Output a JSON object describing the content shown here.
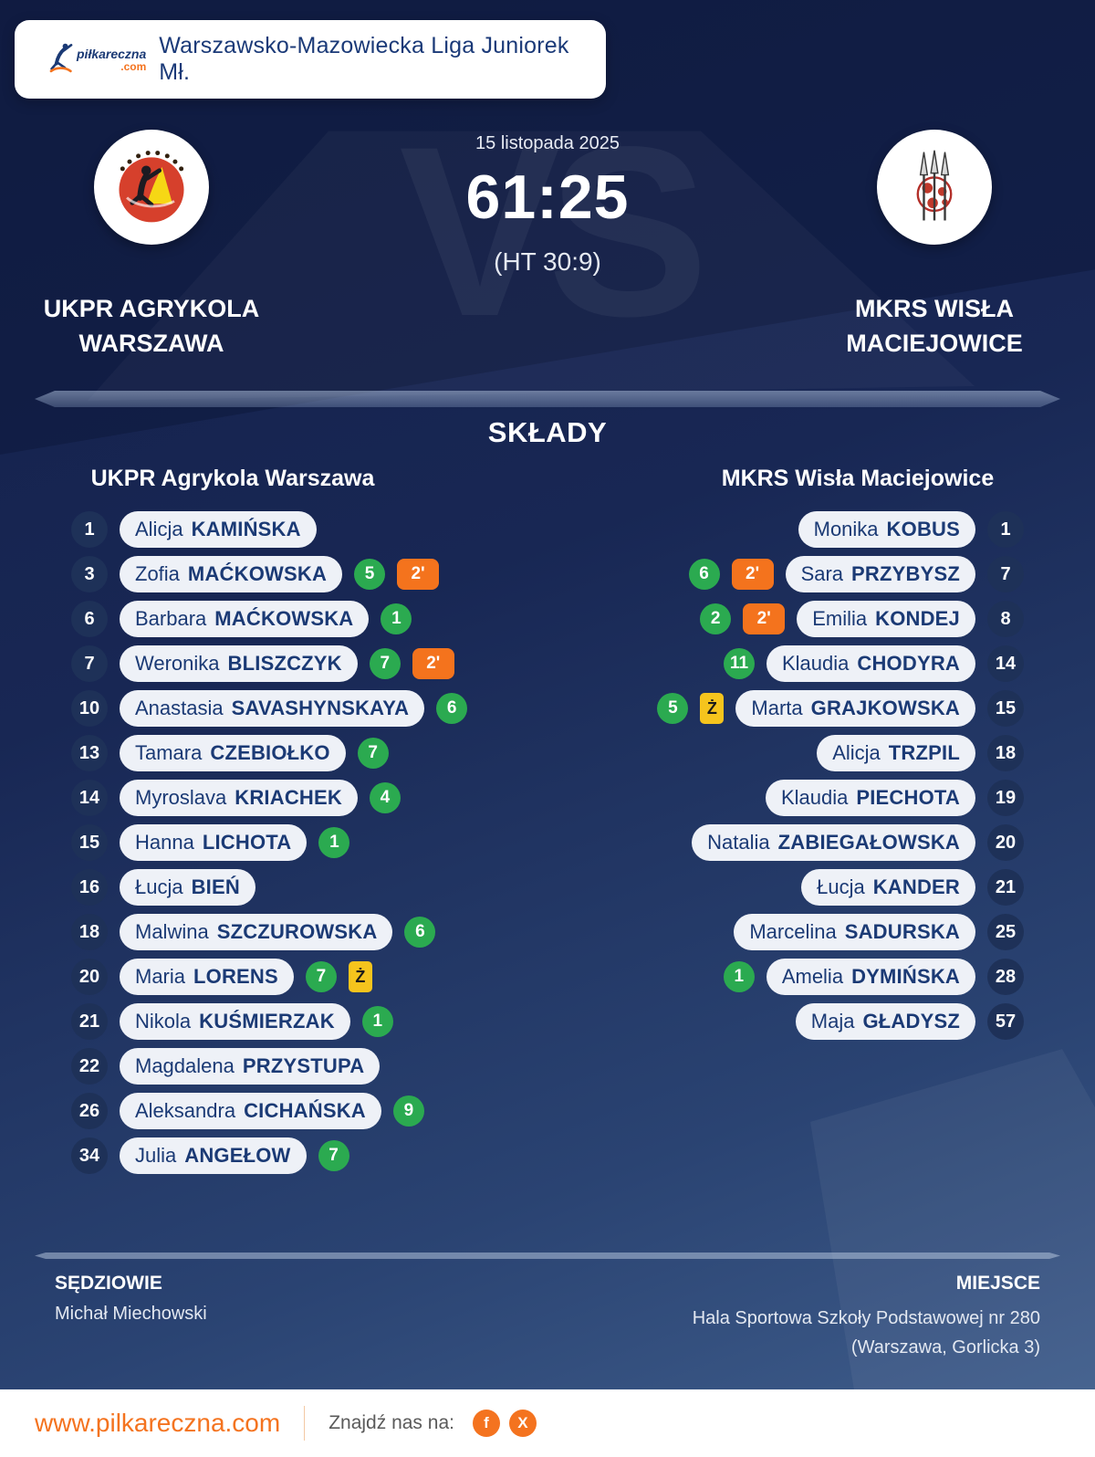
{
  "header": {
    "brand": "piłkareczna",
    "brand_tld": ".com",
    "league": "Warszawsko-Mazowiecka Liga Juniorek Mł."
  },
  "match": {
    "date": "15 listopada 2025",
    "score": "61:25",
    "halftime": "(HT 30:9)",
    "vs": "VS",
    "home_name": "UKPR AGRYKOLA WARSZAWA",
    "away_name": "MKRS WISŁA MACIEJOWICE"
  },
  "lineups": {
    "title": "SKŁADY",
    "home": {
      "team": "UKPR Agrykola Warszawa",
      "players": [
        {
          "number": 1,
          "first": "Alicja",
          "last": "KAMIŃSKA"
        },
        {
          "number": 3,
          "first": "Zofia",
          "last": "MAĆKOWSKA",
          "goals": 5,
          "penalty": "2'"
        },
        {
          "number": 6,
          "first": "Barbara",
          "last": "MAĆKOWSKA",
          "goals": 1
        },
        {
          "number": 7,
          "first": "Weronika",
          "last": "BLISZCZYK",
          "goals": 7,
          "penalty": "2'"
        },
        {
          "number": 10,
          "first": "Anastasia",
          "last": "SAVASHYNSKAYA",
          "goals": 6
        },
        {
          "number": 13,
          "first": "Tamara",
          "last": "CZEBIOŁKO",
          "goals": 7
        },
        {
          "number": 14,
          "first": "Myroslava",
          "last": "KRIACHEK",
          "goals": 4
        },
        {
          "number": 15,
          "first": "Hanna",
          "last": "LICHOTA",
          "goals": 1
        },
        {
          "number": 16,
          "first": "Łucja",
          "last": "BIEŃ"
        },
        {
          "number": 18,
          "first": "Malwina",
          "last": "SZCZUROWSKA",
          "goals": 6
        },
        {
          "number": 20,
          "first": "Maria",
          "last": "LORENS",
          "goals": 7,
          "card": "Ż"
        },
        {
          "number": 21,
          "first": "Nikola",
          "last": "KUŚMIERZAK",
          "goals": 1
        },
        {
          "number": 22,
          "first": "Magdalena",
          "last": "PRZYSTUPA"
        },
        {
          "number": 26,
          "first": "Aleksandra",
          "last": "CICHAŃSKA",
          "goals": 9
        },
        {
          "number": 34,
          "first": "Julia",
          "last": "ANGEŁOW",
          "goals": 7
        }
      ]
    },
    "away": {
      "team": "MKRS Wisła Maciejowice",
      "players": [
        {
          "number": 1,
          "first": "Monika",
          "last": "KOBUS"
        },
        {
          "number": 7,
          "first": "Sara",
          "last": "PRZYBYSZ",
          "goals": 6,
          "penalty": "2'"
        },
        {
          "number": 8,
          "first": "Emilia",
          "last": "KONDEJ",
          "goals": 2,
          "penalty": "2'"
        },
        {
          "number": 14,
          "first": "Klaudia",
          "last": "CHODYRA",
          "goals": 11
        },
        {
          "number": 15,
          "first": "Marta",
          "last": "GRAJKOWSKA",
          "goals": 5,
          "card": "Ż"
        },
        {
          "number": 18,
          "first": "Alicja",
          "last": "TRZPIL"
        },
        {
          "number": 19,
          "first": "Klaudia",
          "last": "PIECHOTA"
        },
        {
          "number": 20,
          "first": "Natalia",
          "last": "ZABIEGAŁOWSKA"
        },
        {
          "number": 21,
          "first": "Łucja",
          "last": "KANDER"
        },
        {
          "number": 25,
          "first": "Marcelina",
          "last": "SADURSKA"
        },
        {
          "number": 28,
          "first": "Amelia",
          "last": "DYMIŃSKA",
          "goals": 1
        },
        {
          "number": 57,
          "first": "Maja",
          "last": "GŁADYSZ"
        }
      ]
    }
  },
  "footer": {
    "referees_label": "SĘDZIOWIE",
    "referees": "Michał Miechowski",
    "venue_label": "MIEJSCE",
    "venue": "Hala Sportowa Szkoły Podstawowej nr 280 (Warszawa, Gorlicka 3)"
  },
  "bottom": {
    "website": "www.pilkareczna.com",
    "find_us": "Znajdź nas na:",
    "social": [
      {
        "name": "facebook",
        "label": "f"
      },
      {
        "name": "x",
        "label": "X"
      }
    ]
  },
  "colors": {
    "accent_orange": "#f4731f",
    "goal_green": "#2baa50",
    "penalty_orange": "#f4731d",
    "card_yellow": "#f5c41d",
    "navy_text": "#1b3a75",
    "background_navy": "#16234e"
  }
}
